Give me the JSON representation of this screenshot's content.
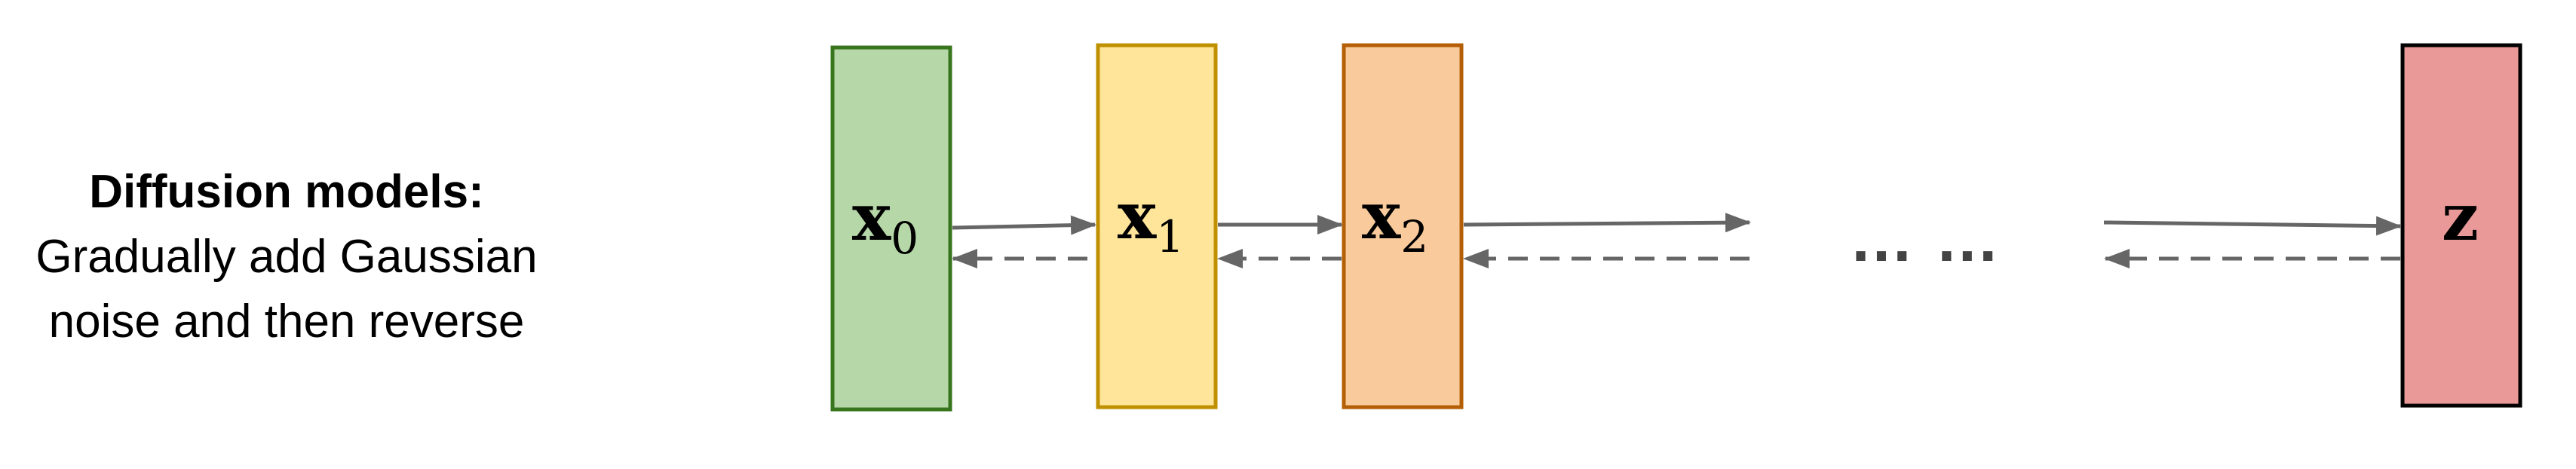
{
  "caption": {
    "title": "Diffusion models:",
    "line1": "Gradually add Gaussian",
    "line2": "noise and then reverse"
  },
  "nodes": [
    {
      "main": "x",
      "sub": "0",
      "fill": "#b6d7a8",
      "stroke": "#38761d"
    },
    {
      "main": "x",
      "sub": "1",
      "fill": "#ffe599",
      "stroke": "#bf9000"
    },
    {
      "main": "x",
      "sub": "2",
      "fill": "#f9cb9c",
      "stroke": "#b45f06"
    },
    {
      "main": "z",
      "sub": "",
      "fill": "#ea9999",
      "stroke": "#000000"
    }
  ],
  "ellipsis": "… …",
  "arrow_color": "#666666"
}
